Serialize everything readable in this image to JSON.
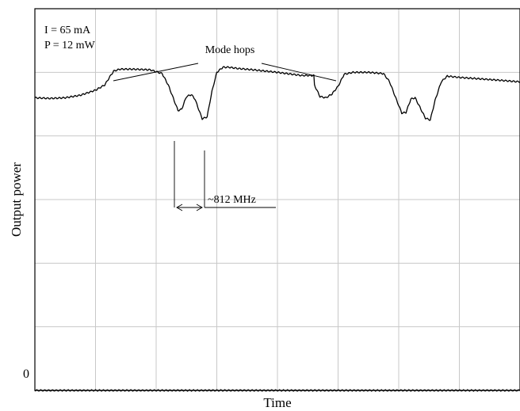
{
  "chart_data": {
    "type": "line",
    "title": "",
    "xlabel": "Time",
    "ylabel": "Output power",
    "xlim": [
      0,
      8
    ],
    "ylim": [
      0,
      6
    ],
    "grid": true,
    "y_ticks": [
      {
        "value": 0,
        "label": "0"
      }
    ],
    "conditions": [
      "I = 65 mA",
      "P = 12 mW"
    ],
    "annotations": [
      {
        "name": "mode-hops",
        "text": "Mode hops",
        "points_to": [
          {
            "x": 1.28,
            "y": 5.05
          },
          {
            "x": 5.0,
            "y": 5.05
          }
        ]
      },
      {
        "name": "frequency-spacing",
        "text": "~812 MHz",
        "between_x": [
          2.36,
          2.84
        ]
      }
    ],
    "series": [
      {
        "x": [
          0,
          0.25,
          0.5,
          0.75,
          1.0,
          1.15,
          1.25,
          1.3,
          1.4,
          1.6,
          1.9,
          2.1,
          2.2,
          2.3,
          2.36,
          2.42,
          2.5,
          2.58,
          2.64,
          2.7,
          2.76,
          2.84,
          2.92,
          3.0,
          3.1,
          3.2,
          3.35,
          3.6,
          4.0,
          4.4,
          4.6,
          4.61,
          4.7,
          4.8,
          4.9,
          5.0,
          5.1,
          5.25,
          5.5,
          5.75,
          5.85,
          5.95,
          6.05,
          6.12,
          6.2,
          6.27,
          6.35,
          6.44,
          6.52,
          6.6,
          6.7,
          6.8,
          6.9,
          7.0,
          7.3,
          7.6,
          8.0
        ],
        "y": [
          4.6,
          4.59,
          4.6,
          4.64,
          4.72,
          4.8,
          4.95,
          5.02,
          5.05,
          5.05,
          5.04,
          4.98,
          4.8,
          4.55,
          4.4,
          4.42,
          4.62,
          4.65,
          4.58,
          4.42,
          4.27,
          4.3,
          4.7,
          5.0,
          5.08,
          5.08,
          5.06,
          5.04,
          5.0,
          4.95,
          4.95,
          4.8,
          4.62,
          4.6,
          4.66,
          4.78,
          4.97,
          5.0,
          5.0,
          4.98,
          4.85,
          4.6,
          4.36,
          4.37,
          4.58,
          4.6,
          4.45,
          4.28,
          4.25,
          4.56,
          4.85,
          4.94,
          4.93,
          4.92,
          4.9,
          4.88,
          4.85
        ]
      },
      {
        "x": [
          0,
          1,
          2,
          3,
          4,
          5,
          6,
          7,
          8
        ],
        "y": [
          0,
          0,
          0,
          0,
          0,
          0,
          0,
          0,
          0
        ]
      }
    ]
  }
}
